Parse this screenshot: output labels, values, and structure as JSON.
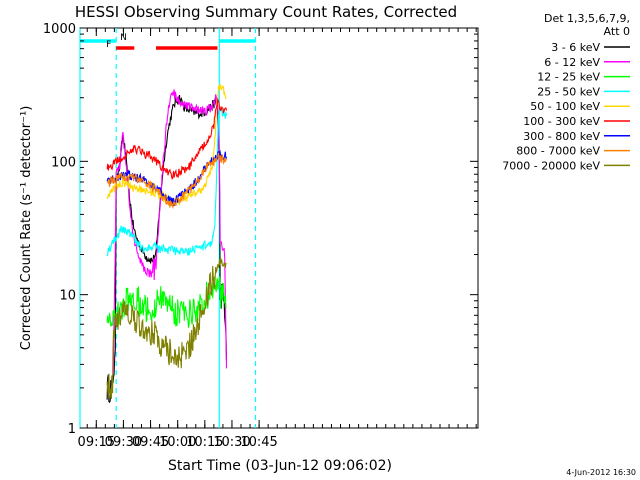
{
  "chart_data": {
    "type": "line",
    "title": "HESSI Observing Summary Count Rates, Corrected",
    "xlabel": "Start Time (03-Jun-12 09:06:02)",
    "ylabel": "Corrected Count Rate (s⁻¹ detector⁻¹)",
    "y_scale": "log",
    "ylim": [
      1,
      1000
    ],
    "xlim_minutes": [
      546,
      766
    ],
    "x_ticks": [
      {
        "label": "09:15",
        "min": 555
      },
      {
        "label": "09:30",
        "min": 570
      },
      {
        "label": "09:45",
        "min": 585
      },
      {
        "label": "10:00",
        "min": 600
      },
      {
        "label": "10:15",
        "min": 615
      },
      {
        "label": "10:30",
        "min": 630
      },
      {
        "label": "10:45",
        "min": 645
      }
    ],
    "y_ticks": [
      {
        "label": "1",
        "value": 1
      },
      {
        "label": "10",
        "value": 10
      },
      {
        "label": "100",
        "value": 100
      },
      {
        "label": "1000",
        "value": 1000
      }
    ],
    "legend_header": [
      "Det 1,3,5,6,7,9,",
      "Att 0"
    ],
    "legend_placement": "right",
    "series": [
      {
        "name": "3 - 6 keV",
        "color": "#000000",
        "points": [
          [
            561,
            2
          ],
          [
            564,
            2
          ],
          [
            564.5,
            2.8
          ],
          [
            565.5,
            3
          ],
          [
            566,
            80
          ],
          [
            568,
            90
          ],
          [
            569,
            130
          ],
          [
            569.7,
            155
          ],
          [
            571,
            120
          ],
          [
            573,
            60
          ],
          [
            575,
            35
          ],
          [
            577,
            27
          ],
          [
            580,
            22
          ],
          [
            583,
            19
          ],
          [
            586,
            18
          ],
          [
            588,
            20
          ],
          [
            590,
            45
          ],
          [
            592,
            90
          ],
          [
            594,
            150
          ],
          [
            596,
            210
          ],
          [
            598,
            270
          ],
          [
            601,
            300
          ],
          [
            604,
            250
          ],
          [
            607,
            240
          ],
          [
            610,
            230
          ],
          [
            613,
            230
          ],
          [
            616,
            240
          ],
          [
            619,
            260
          ],
          [
            621,
            280
          ],
          [
            622,
            240
          ],
          [
            623,
            100
          ],
          [
            623.5,
            10
          ],
          [
            625,
            10
          ],
          [
            626,
            8
          ],
          [
            627,
            3.2
          ]
        ]
      },
      {
        "name": "6 - 12 keV",
        "color": "#ff00ff",
        "points": [
          [
            564.5,
            3
          ],
          [
            566,
            80
          ],
          [
            568,
            90
          ],
          [
            569,
            130
          ],
          [
            569.7,
            160
          ],
          [
            571,
            110
          ],
          [
            573,
            55
          ],
          [
            575,
            30
          ],
          [
            577,
            22
          ],
          [
            580,
            17
          ],
          [
            583,
            15
          ],
          [
            586,
            14
          ],
          [
            588,
            16
          ],
          [
            590,
            40
          ],
          [
            592,
            100
          ],
          [
            594,
            200
          ],
          [
            596,
            300
          ],
          [
            598,
            320
          ],
          [
            601,
            280
          ],
          [
            604,
            260
          ],
          [
            607,
            255
          ],
          [
            610,
            250
          ],
          [
            613,
            240
          ],
          [
            616,
            240
          ],
          [
            619,
            260
          ],
          [
            621,
            300
          ],
          [
            622,
            250
          ],
          [
            623,
            120
          ],
          [
            623.5,
            25
          ],
          [
            625,
            23
          ],
          [
            626,
            20
          ],
          [
            627,
            2.8
          ]
        ]
      },
      {
        "name": "12 - 25 keV",
        "color": "#00ff00",
        "points": [
          [
            561,
            7
          ],
          [
            564,
            7
          ],
          [
            566,
            7
          ],
          [
            569,
            8
          ],
          [
            572,
            9.5
          ],
          [
            574,
            10
          ],
          [
            577,
            9.5
          ],
          [
            580,
            8.5
          ],
          [
            583,
            8
          ],
          [
            586,
            8
          ],
          [
            589,
            9
          ],
          [
            592,
            10
          ],
          [
            595,
            9
          ],
          [
            598,
            7.5
          ],
          [
            601,
            7.2
          ],
          [
            604,
            7
          ],
          [
            607,
            7.2
          ],
          [
            610,
            7.5
          ],
          [
            613,
            8.5
          ],
          [
            616,
            10
          ],
          [
            619,
            11
          ],
          [
            621,
            12
          ],
          [
            622.5,
            12
          ],
          [
            623.5,
            10
          ],
          [
            625,
            10
          ],
          [
            627,
            8
          ]
        ]
      },
      {
        "name": "25 - 50 keV",
        "color": "#00ffff",
        "points": [
          [
            561,
            20
          ],
          [
            563,
            23
          ],
          [
            566,
            27
          ],
          [
            569,
            31
          ],
          [
            572,
            30
          ],
          [
            575,
            27
          ],
          [
            578,
            24
          ],
          [
            581,
            22
          ],
          [
            584,
            22
          ],
          [
            587,
            23
          ],
          [
            590,
            22
          ],
          [
            593,
            22
          ],
          [
            596,
            21.5
          ],
          [
            599,
            21
          ],
          [
            602,
            21
          ],
          [
            605,
            21
          ],
          [
            608,
            21.5
          ],
          [
            611,
            22
          ],
          [
            614,
            23
          ],
          [
            617,
            24
          ],
          [
            619,
            25
          ],
          [
            620.5,
            35
          ],
          [
            621.5,
            80
          ],
          [
            622.5,
            230
          ],
          [
            623.5,
            250
          ],
          [
            625,
            230
          ],
          [
            627,
            220
          ]
        ]
      },
      {
        "name": "50 - 100 keV",
        "color": "#ffd700",
        "points": [
          [
            561,
            55
          ],
          [
            564,
            60
          ],
          [
            567,
            66
          ],
          [
            570,
            69
          ],
          [
            573,
            66
          ],
          [
            576,
            63
          ],
          [
            579,
            61
          ],
          [
            582,
            60
          ],
          [
            585,
            59
          ],
          [
            588,
            57
          ],
          [
            591,
            55
          ],
          [
            594,
            52
          ],
          [
            596,
            50
          ],
          [
            598,
            50
          ],
          [
            601,
            51
          ],
          [
            604,
            53
          ],
          [
            607,
            55
          ],
          [
            610,
            57
          ],
          [
            613,
            62
          ],
          [
            616,
            70
          ],
          [
            618,
            80
          ],
          [
            619.5,
            100
          ],
          [
            620.5,
            140
          ],
          [
            621.5,
            250
          ],
          [
            622.5,
            340
          ],
          [
            623.5,
            360
          ],
          [
            625,
            340
          ],
          [
            627,
            300
          ]
        ]
      },
      {
        "name": "100 - 300 keV",
        "color": "#ff0000",
        "points": [
          [
            561,
            88
          ],
          [
            564,
            95
          ],
          [
            567,
            102
          ],
          [
            570,
            110
          ],
          [
            573,
            118
          ],
          [
            576,
            122
          ],
          [
            579,
            120
          ],
          [
            582,
            115
          ],
          [
            585,
            108
          ],
          [
            588,
            100
          ],
          [
            591,
            92
          ],
          [
            594,
            85
          ],
          [
            596,
            80
          ],
          [
            597,
            78
          ],
          [
            598,
            78
          ],
          [
            600,
            82
          ],
          [
            603,
            85
          ],
          [
            606,
            90
          ],
          [
            609,
            102
          ],
          [
            612,
            118
          ],
          [
            615,
            135
          ],
          [
            618,
            160
          ],
          [
            620,
            185
          ],
          [
            621.5,
            260
          ],
          [
            622.5,
            280
          ],
          [
            623.5,
            260
          ],
          [
            625,
            250
          ],
          [
            627,
            240
          ]
        ]
      },
      {
        "name": "300 - 800 keV",
        "color": "#0000ff",
        "points": [
          [
            561,
            70
          ],
          [
            564,
            73
          ],
          [
            567,
            76
          ],
          [
            570,
            79
          ],
          [
            573,
            79
          ],
          [
            576,
            77
          ],
          [
            579,
            74
          ],
          [
            582,
            71
          ],
          [
            585,
            68
          ],
          [
            588,
            63
          ],
          [
            591,
            58
          ],
          [
            594,
            53
          ],
          [
            596,
            50
          ],
          [
            598,
            50
          ],
          [
            601,
            54
          ],
          [
            604,
            58
          ],
          [
            607,
            63
          ],
          [
            610,
            70
          ],
          [
            613,
            80
          ],
          [
            616,
            92
          ],
          [
            619,
            100
          ],
          [
            621,
            108
          ],
          [
            622.5,
            115
          ],
          [
            624,
            112
          ],
          [
            626,
            110
          ],
          [
            627,
            108
          ]
        ]
      },
      {
        "name": "800 - 7000 keV",
        "color": "#ff8000",
        "points": [
          [
            561,
            68
          ],
          [
            564,
            71
          ],
          [
            567,
            74
          ],
          [
            570,
            77
          ],
          [
            573,
            77
          ],
          [
            576,
            75
          ],
          [
            579,
            72
          ],
          [
            582,
            69
          ],
          [
            585,
            66
          ],
          [
            588,
            61
          ],
          [
            591,
            56
          ],
          [
            594,
            51
          ],
          [
            596,
            48
          ],
          [
            598,
            48
          ],
          [
            601,
            52
          ],
          [
            604,
            56
          ],
          [
            607,
            61
          ],
          [
            610,
            68
          ],
          [
            613,
            78
          ],
          [
            616,
            90
          ],
          [
            619,
            97
          ],
          [
            621,
            104
          ],
          [
            622.5,
            108
          ],
          [
            624,
            105
          ],
          [
            626,
            103
          ],
          [
            627,
            102
          ]
        ]
      },
      {
        "name": "7000 - 20000 keV",
        "color": "#808000",
        "points": [
          [
            561,
            2
          ],
          [
            564,
            2
          ],
          [
            564.5,
            6
          ],
          [
            566,
            6.5
          ],
          [
            569,
            7
          ],
          [
            572,
            7
          ],
          [
            575,
            6.5
          ],
          [
            578,
            6
          ],
          [
            581,
            5.5
          ],
          [
            584,
            5.3
          ],
          [
            587,
            5
          ],
          [
            590,
            4.5
          ],
          [
            593,
            4
          ],
          [
            596,
            3.6
          ],
          [
            598,
            3.4
          ],
          [
            600,
            3.4
          ],
          [
            603,
            3.5
          ],
          [
            606,
            4
          ],
          [
            609,
            5
          ],
          [
            612,
            6.5
          ],
          [
            615,
            9
          ],
          [
            618,
            12
          ],
          [
            621,
            15
          ],
          [
            622.5,
            17
          ],
          [
            624,
            18
          ],
          [
            626,
            17
          ],
          [
            627,
            17
          ]
        ]
      }
    ],
    "vertical_markers": [
      {
        "min": 546,
        "color": "#00ffff",
        "style": "solid"
      },
      {
        "min": 566,
        "color": "#00ffff",
        "style": "dashed"
      },
      {
        "min": 623,
        "color": "#00ffff",
        "style": "solid"
      },
      {
        "min": 643,
        "color": "#00ffff",
        "style": "dashed"
      }
    ],
    "flag_bars": [
      {
        "label": "N",
        "color": "#00ffff",
        "from": 546,
        "to": 566,
        "level": "high"
      },
      {
        "label": "",
        "color": "#00ffff",
        "from": 623,
        "to": 643,
        "level": "high"
      },
      {
        "label": "F",
        "color": "#ff0000",
        "from": 566,
        "to": 576,
        "level": "low"
      },
      {
        "label": "",
        "color": "#ff0000",
        "from": 588,
        "to": 622,
        "level": "low"
      }
    ]
  },
  "footer": {
    "date_stamp": "4-Jun-2012 16:30"
  }
}
